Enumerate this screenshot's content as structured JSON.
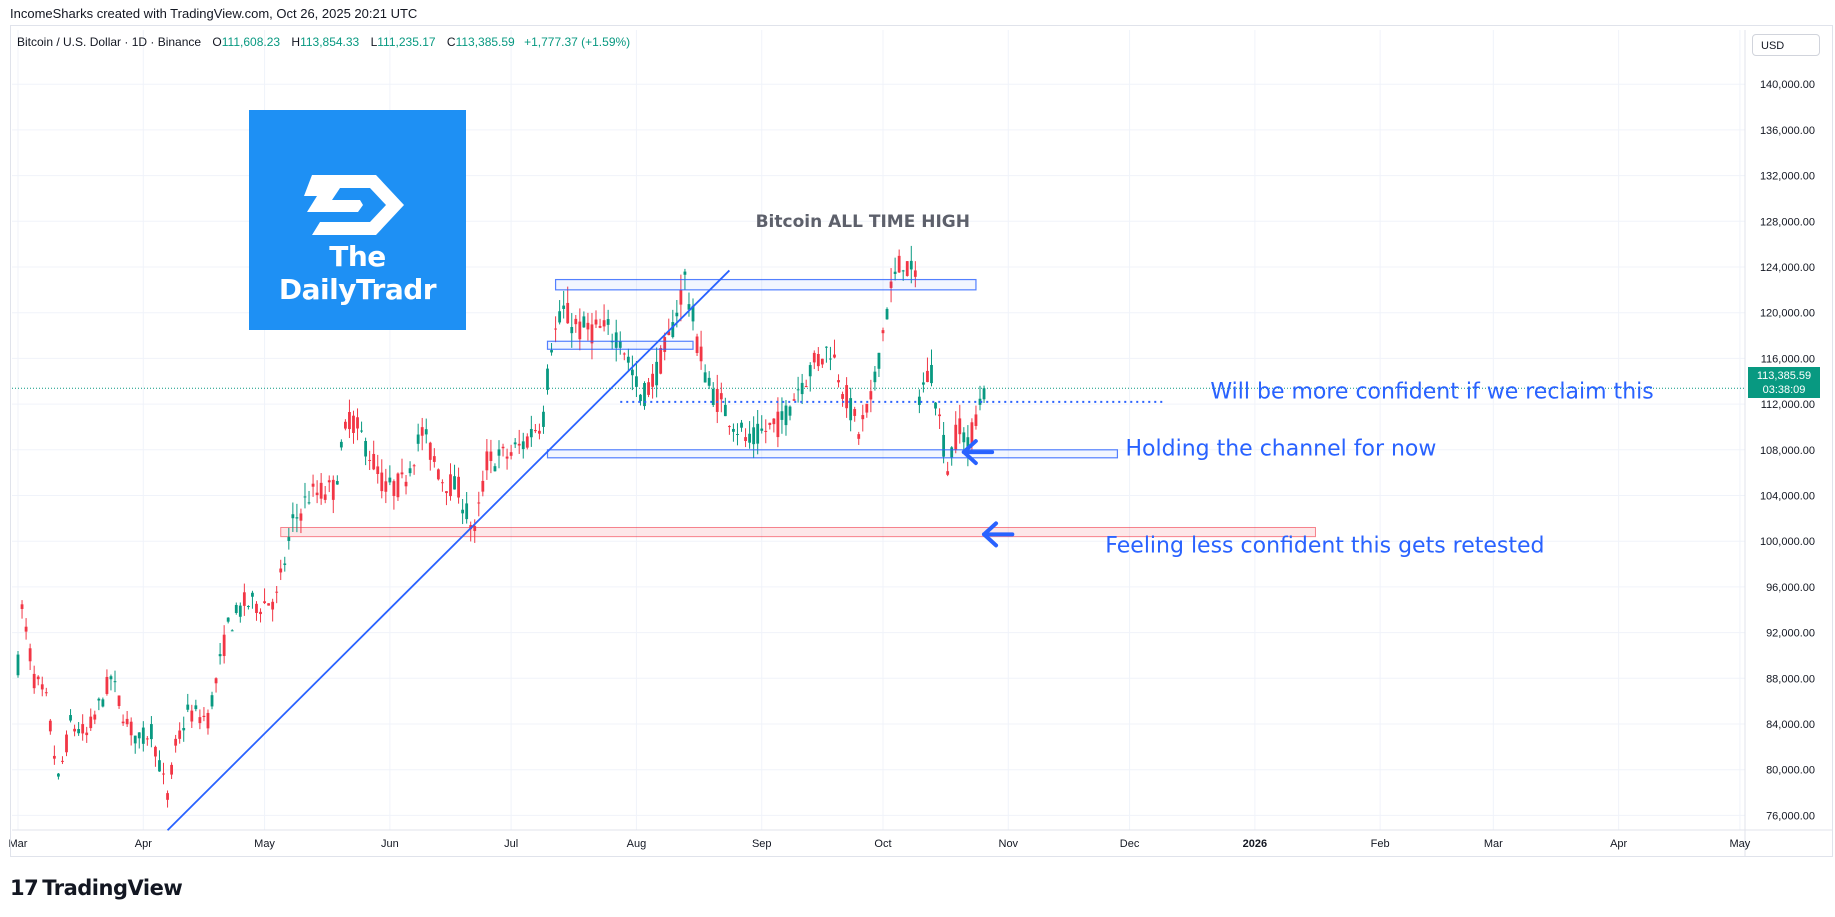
{
  "header": {
    "attribution": "IncomeSharks created with TradingView.com, Oct 26, 2025 20:21 UTC",
    "symbol": "Bitcoin / U.S. Dollar · 1D · Binance",
    "open_label": "O",
    "open": "111,608.23",
    "high_label": "H",
    "high": "113,854.33",
    "low_label": "L",
    "low": "111,235.17",
    "close_label": "C",
    "close": "113,385.59",
    "change": "+1,777.37 (+1.59%)"
  },
  "currency_button": "USD",
  "logo": {
    "text": "The DailyTradr"
  },
  "footer": {
    "brand": "TradingView",
    "mark": "17"
  },
  "price_tag": {
    "price": "113,385.59",
    "countdown": "03:38:09"
  },
  "colors": {
    "up": "#089981",
    "down": "#f23645",
    "annotation": "#2962ff",
    "logo_bg": "#1e90f4",
    "support_zone": "#f23645"
  },
  "chart_data": {
    "type": "candlestick",
    "ylim": [
      72000,
      142000
    ],
    "y_ticks": [
      76000,
      80000,
      84000,
      88000,
      92000,
      96000,
      100000,
      104000,
      108000,
      112000,
      116000,
      120000,
      124000,
      128000,
      132000,
      136000,
      140000
    ],
    "y_tick_labels": [
      "76,000.00",
      "80,000.00",
      "84,000.00",
      "88,000.00",
      "92,000.00",
      "96,000.00",
      "100,000.00",
      "104,000.00",
      "108,000.00",
      "112,000.00",
      "116,000.00",
      "120,000.00",
      "124,000.00",
      "128,000.00",
      "132,000.00",
      "136,000.00",
      "140,000.00"
    ],
    "x_ticks": [
      {
        "date": "2025-03-01",
        "label": "Mar"
      },
      {
        "date": "2025-04-01",
        "label": "Apr"
      },
      {
        "date": "2025-05-01",
        "label": "May"
      },
      {
        "date": "2025-06-01",
        "label": "Jun"
      },
      {
        "date": "2025-07-01",
        "label": "Jul"
      },
      {
        "date": "2025-08-01",
        "label": "Aug"
      },
      {
        "date": "2025-09-01",
        "label": "Sep"
      },
      {
        "date": "2025-10-01",
        "label": "Oct"
      },
      {
        "date": "2025-11-01",
        "label": "Nov"
      },
      {
        "date": "2025-12-01",
        "label": "Dec"
      },
      {
        "date": "2026-01-01",
        "label": "2026"
      },
      {
        "date": "2026-02-01",
        "label": "Feb"
      },
      {
        "date": "2026-03-01",
        "label": "Mar"
      },
      {
        "date": "2026-04-01",
        "label": "Apr"
      },
      {
        "date": "2026-05-01",
        "label": "May"
      }
    ],
    "price_path": [
      [
        "2025-02-28",
        84500
      ],
      [
        "2025-03-02",
        94000
      ],
      [
        "2025-03-05",
        88000
      ],
      [
        "2025-03-08",
        86000
      ],
      [
        "2025-03-11",
        79000
      ],
      [
        "2025-03-14",
        84000
      ],
      [
        "2025-03-18",
        83000
      ],
      [
        "2025-03-24",
        88000
      ],
      [
        "2025-03-28",
        84000
      ],
      [
        "2025-03-31",
        82500
      ],
      [
        "2025-04-03",
        83500
      ],
      [
        "2025-04-07",
        77500
      ],
      [
        "2025-04-09",
        82000
      ],
      [
        "2025-04-12",
        85000
      ],
      [
        "2025-04-17",
        84500
      ],
      [
        "2025-04-22",
        92500
      ],
      [
        "2025-04-26",
        94500
      ],
      [
        "2025-04-30",
        94500
      ],
      [
        "2025-05-04",
        95000
      ],
      [
        "2025-05-08",
        101500
      ],
      [
        "2025-05-12",
        104000
      ],
      [
        "2025-05-18",
        104500
      ],
      [
        "2025-05-22",
        111000
      ],
      [
        "2025-05-26",
        108500
      ],
      [
        "2025-05-31",
        104500
      ],
      [
        "2025-06-04",
        105000
      ],
      [
        "2025-06-09",
        109500
      ],
      [
        "2025-06-14",
        105500
      ],
      [
        "2025-06-18",
        104500
      ],
      [
        "2025-06-22",
        100500
      ],
      [
        "2025-06-25",
        107000
      ],
      [
        "2025-06-30",
        107500
      ],
      [
        "2025-07-04",
        108500
      ],
      [
        "2025-07-09",
        111000
      ],
      [
        "2025-07-11",
        117500
      ],
      [
        "2025-07-14",
        120000
      ],
      [
        "2025-07-18",
        118500
      ],
      [
        "2025-07-23",
        118500
      ],
      [
        "2025-07-28",
        118000
      ],
      [
        "2025-08-02",
        112500
      ],
      [
        "2025-08-05",
        114000
      ],
      [
        "2025-08-09",
        117500
      ],
      [
        "2025-08-13",
        123000
      ],
      [
        "2025-08-16",
        117500
      ],
      [
        "2025-08-19",
        113500
      ],
      [
        "2025-08-25",
        110500
      ],
      [
        "2025-08-29",
        108500
      ],
      [
        "2025-09-01",
        109500
      ],
      [
        "2025-09-06",
        110500
      ],
      [
        "2025-09-10",
        113500
      ],
      [
        "2025-09-14",
        115500
      ],
      [
        "2025-09-18",
        117000
      ],
      [
        "2025-09-22",
        112500
      ],
      [
        "2025-09-25",
        109500
      ],
      [
        "2025-09-28",
        112000
      ],
      [
        "2025-10-01",
        118500
      ],
      [
        "2025-10-03",
        122000
      ],
      [
        "2025-10-06",
        124800
      ],
      [
        "2025-10-09",
        122500
      ],
      [
        "2025-10-10",
        113000
      ],
      [
        "2025-10-13",
        115000
      ],
      [
        "2025-10-16",
        108500
      ],
      [
        "2025-10-17",
        106500
      ],
      [
        "2025-10-20",
        110500
      ],
      [
        "2025-10-22",
        108000
      ],
      [
        "2025-10-24",
        111000
      ],
      [
        "2025-10-26",
        113386
      ]
    ],
    "annotations": [
      {
        "type": "text",
        "text": "Bitcoin ALL TIME HIGH",
        "date": "2025-09-26",
        "price": 127500
      },
      {
        "type": "text",
        "text": "Will be more confident if we reclaim this",
        "date": "2025-12-21",
        "price": 112500
      },
      {
        "type": "text",
        "text": "Holding the channel for now",
        "date": "2025-11-30",
        "price": 107500
      },
      {
        "type": "text",
        "text": "Feeling less confident this gets retested",
        "date": "2025-11-25",
        "price": 99000
      },
      {
        "type": "trendline",
        "from": [
          "2025-04-07",
          74700
        ],
        "to": [
          "2025-08-24",
          123700
        ]
      },
      {
        "type": "rect",
        "from": [
          "2025-07-12",
          122900
        ],
        "to": [
          "2025-10-24",
          122000
        ]
      },
      {
        "type": "rect",
        "from": [
          "2025-07-10",
          117500
        ],
        "to": [
          "2025-08-15",
          117000
        ]
      },
      {
        "type": "rect",
        "from": [
          "2025-07-10",
          108000
        ],
        "to": [
          "2025-11-28",
          107400
        ]
      },
      {
        "type": "rect_zone",
        "from": [
          "2025-05-05",
          101200
        ],
        "to": [
          "2026-01-16",
          100400
        ]
      },
      {
        "type": "hline_dotted",
        "from": "2025-07-28",
        "to": "2025-12-10",
        "price": 112200
      },
      {
        "type": "arrow",
        "from": [
          "2025-10-28",
          107800
        ],
        "to": [
          "2025-10-21",
          107800
        ]
      },
      {
        "type": "arrow",
        "from": [
          "2025-11-02",
          100600
        ],
        "to": [
          "2025-10-26",
          100600
        ]
      }
    ],
    "current_price": 113385.59
  }
}
